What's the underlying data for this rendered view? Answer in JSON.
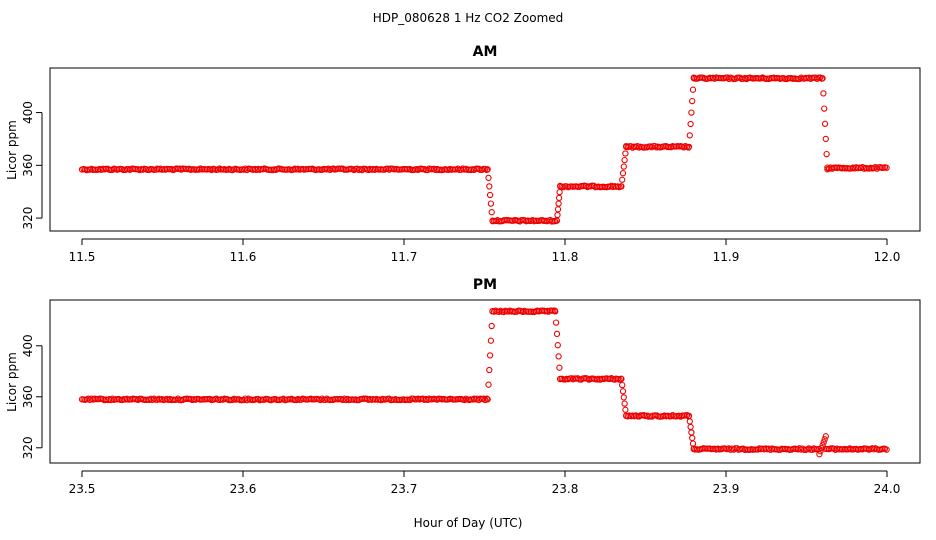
{
  "title": "HDP_080628  1 Hz CO2 Zoomed",
  "xlabel": "Hour of Day (UTC)",
  "colors": {
    "points": "#ee0000",
    "axes": "#000000"
  },
  "chart_data": [
    {
      "type": "scatter",
      "title": "AM",
      "ylabel": "Licor ppm",
      "xlim": [
        11.5,
        12.0
      ],
      "ylim": [
        314,
        430
      ],
      "xticks": [
        "11.5",
        "11.6",
        "11.7",
        "11.8",
        "11.9",
        "12.0"
      ],
      "yticks": [
        "320",
        "360",
        "400"
      ],
      "segments": [
        {
          "x": [
            11.5,
            11.752
          ],
          "y": 357
        },
        {
          "x": [
            11.752,
            11.755
          ],
          "y": [
            357,
            318
          ]
        },
        {
          "x": [
            11.755,
            11.795
          ],
          "y": 318
        },
        {
          "x": [
            11.795,
            11.797
          ],
          "y": [
            318,
            344
          ]
        },
        {
          "x": [
            11.797,
            11.835
          ],
          "y": 344
        },
        {
          "x": [
            11.835,
            11.838
          ],
          "y": [
            344,
            374
          ]
        },
        {
          "x": [
            11.838,
            11.877
          ],
          "y": 374
        },
        {
          "x": [
            11.877,
            11.88
          ],
          "y": [
            374,
            426
          ]
        },
        {
          "x": [
            11.88,
            11.96
          ],
          "y": 426
        },
        {
          "x": [
            11.96,
            11.963
          ],
          "y": [
            426,
            357
          ]
        },
        {
          "x": [
            11.963,
            12.0
          ],
          "y": 358
        }
      ]
    },
    {
      "type": "scatter",
      "title": "PM",
      "ylabel": "Licor ppm",
      "xlim": [
        23.5,
        24.0
      ],
      "ylim": [
        312,
        432
      ],
      "xticks": [
        "23.5",
        "23.6",
        "23.7",
        "23.8",
        "23.9",
        "24.0"
      ],
      "yticks": [
        "320",
        "360",
        "400"
      ],
      "segments": [
        {
          "x": [
            23.5,
            23.752
          ],
          "y": 358
        },
        {
          "x": [
            23.752,
            23.755
          ],
          "y": [
            358,
            427
          ]
        },
        {
          "x": [
            23.755,
            23.794
          ],
          "y": 427
        },
        {
          "x": [
            23.794,
            23.797
          ],
          "y": [
            427,
            374
          ]
        },
        {
          "x": [
            23.797,
            23.835
          ],
          "y": 374
        },
        {
          "x": [
            23.835,
            23.838
          ],
          "y": [
            374,
            345
          ]
        },
        {
          "x": [
            23.838,
            23.877
          ],
          "y": 345
        },
        {
          "x": [
            23.877,
            23.88
          ],
          "y": [
            345,
            319
          ]
        },
        {
          "x": [
            23.88,
            23.958
          ],
          "y": 319
        },
        {
          "x": [
            23.958,
            23.962
          ],
          "y": [
            315,
            329
          ]
        },
        {
          "x": [
            23.962,
            24.0
          ],
          "y": 319
        }
      ]
    }
  ]
}
